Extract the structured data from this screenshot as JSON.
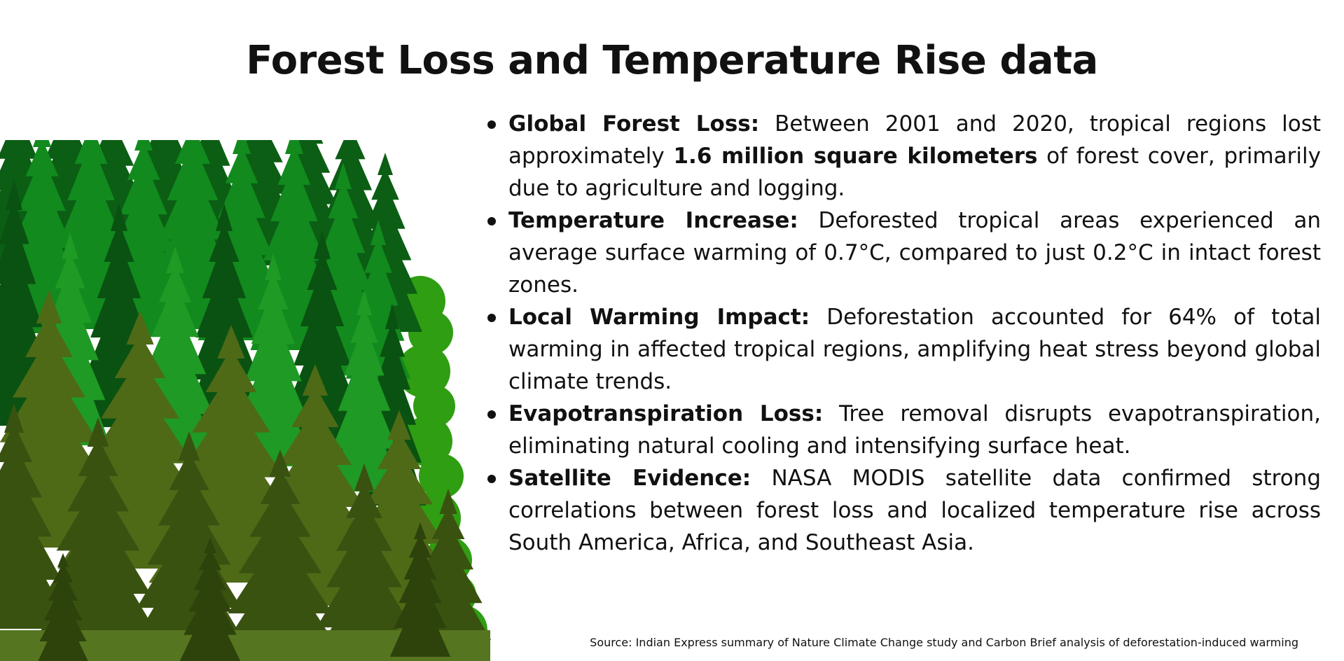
{
  "slide": {
    "title": "Forest Loss and Temperature Rise data",
    "bullets": [
      {
        "label": "Global Forest Loss:",
        "text_before": " Between 2001 and 2020, tropical regions lost approximately ",
        "highlight": "1.6 million square kilometers",
        "text_after": " of forest cover, primarily due to agriculture and logging."
      },
      {
        "label": "Temperature Increase:",
        "text": " Deforested tropical areas experienced an average surface warming of 0.7°C, compared to just 0.2°C in intact forest zones."
      },
      {
        "label": "Local Warming Impact:",
        "text": " Deforestation accounted for 64% of total warming in affected tropical regions, amplifying heat stress beyond global climate trends."
      },
      {
        "label": "Evapotranspiration Loss:",
        "text": " Tree removal disrupts evapotranspiration, eliminating natural cooling and intensifying surface heat."
      },
      {
        "label": "Satellite Evidence:",
        "text": " NASA MODIS satellite data confirmed strong correlations between forest loss and localized temperature rise across South America, Africa, and Southeast Asia."
      }
    ],
    "source": "Source: Indian Express summary of Nature Climate Change study and Carbon Brief analysis of deforestation-induced warming"
  },
  "illustration": {
    "icon": "forest-illustration",
    "colors": {
      "dark_green": "#0b5e14",
      "mid_green": "#128a1e",
      "bright_green": "#2f9e12",
      "olive": "#4e6a17",
      "dark_olive": "#3a5210"
    }
  }
}
